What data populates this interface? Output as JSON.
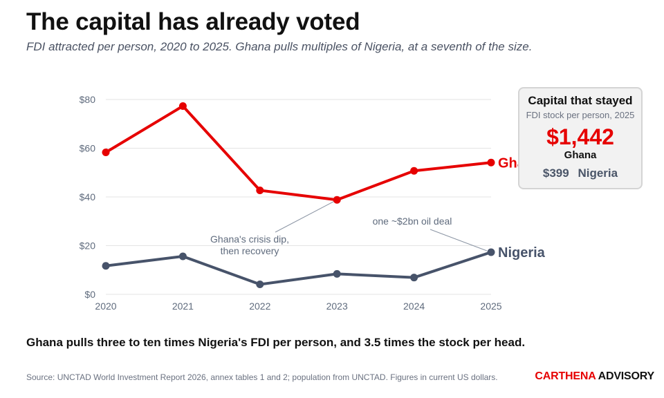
{
  "header": {
    "title": "The capital has already voted",
    "subtitle": "FDI attracted per person, 2020 to 2025. Ghana pulls multiples of Nigeria, at a seventh of the size."
  },
  "chart_data": {
    "type": "line",
    "x": [
      "2020",
      "2021",
      "2022",
      "2023",
      "2024",
      "2025"
    ],
    "ylim": [
      0,
      80
    ],
    "yticks": [
      "$0",
      "$20",
      "$40",
      "$60",
      "$80"
    ],
    "grid": true,
    "series": [
      {
        "name": "Ghana",
        "color": "#e60000",
        "values": [
          58.3,
          77.3,
          42.7,
          38.8,
          50.7,
          54.1
        ]
      },
      {
        "name": "Nigeria",
        "color": "#47536a",
        "values": [
          11.7,
          15.6,
          4.1,
          8.4,
          6.9,
          17.3
        ]
      }
    ],
    "annotations": [
      {
        "text": [
          "Ghana's crisis dip,",
          "then recovery"
        ],
        "target_series": "Ghana",
        "target_x": "2023"
      },
      {
        "text": [
          "one ~$2bn oil deal"
        ],
        "target_series": "Nigeria",
        "target_x": "2025"
      }
    ]
  },
  "callout": {
    "title": "Capital that stayed",
    "subtitle": "FDI stock per person, 2025",
    "ghana_value": "$1,442",
    "ghana_label": "Ghana",
    "nigeria_value": "$399",
    "nigeria_label": "Nigeria"
  },
  "takeaway": "Ghana pulls three to ten times Nigeria's FDI per person, and 3.5 times the stock per head.",
  "source": "Source: UNCTAD World Investment Report 2026, annex tables 1 and 2; population from UNCTAD. Figures in current US dollars.",
  "brand": {
    "part1": "CAR",
    "part2": "THENA",
    "part3": " ADVISORY"
  },
  "colors": {
    "ghana": "#e60000",
    "nigeria": "#47536a",
    "grid": "#e3e3e3"
  }
}
